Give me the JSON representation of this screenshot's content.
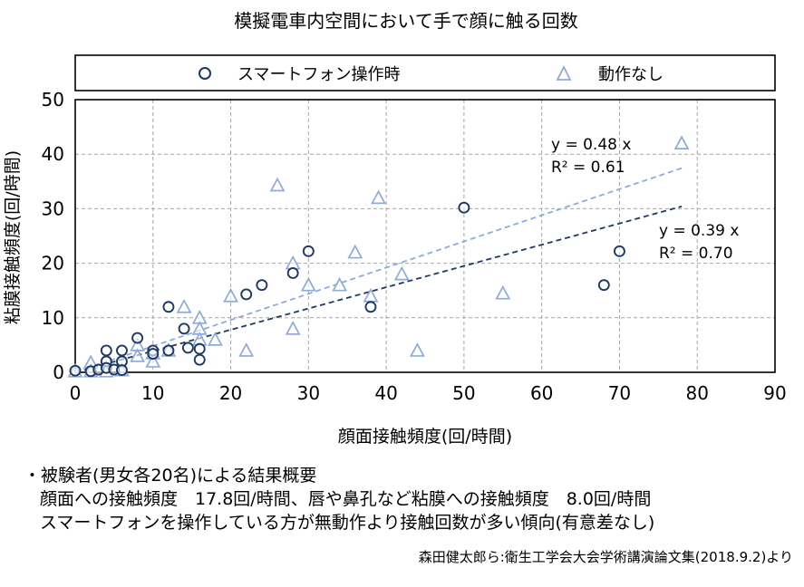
{
  "chart_data": {
    "type": "scatter",
    "title": "模擬電車内空間において手で顔に触る回数",
    "xlabel": "顔面接触頻度(回/時間)",
    "ylabel": "粘膜接触頻度(回/時間)",
    "xlim": [
      0,
      90
    ],
    "ylim": [
      0,
      50
    ],
    "x_ticks": [
      "0",
      "10",
      "20",
      "30",
      "40",
      "50",
      "60",
      "70",
      "80",
      "90"
    ],
    "y_ticks": [
      "0",
      "10",
      "20",
      "30",
      "40",
      "50"
    ],
    "grid": true,
    "legend_position": "top",
    "series": [
      {
        "name": "スマートフォン操作時",
        "marker": "circle",
        "color": "#1f3864",
        "points": [
          [
            0,
            0.3
          ],
          [
            2,
            0.2
          ],
          [
            3,
            0.5
          ],
          [
            4,
            4
          ],
          [
            4,
            2
          ],
          [
            4,
            0.8
          ],
          [
            5,
            0.5
          ],
          [
            6,
            4
          ],
          [
            6,
            2
          ],
          [
            6,
            0.4
          ],
          [
            8,
            6.3
          ],
          [
            10,
            4
          ],
          [
            10,
            3.4
          ],
          [
            12,
            12
          ],
          [
            12,
            4
          ],
          [
            14,
            8
          ],
          [
            14.5,
            4.5
          ],
          [
            16,
            4.3
          ],
          [
            16,
            2.3
          ],
          [
            22,
            14.3
          ],
          [
            24,
            16
          ],
          [
            28,
            18.2
          ],
          [
            30,
            22.2
          ],
          [
            38,
            12
          ],
          [
            50,
            30.2
          ],
          [
            68,
            16
          ],
          [
            70,
            22.2
          ]
        ],
        "trend": {
          "slope": 0.39,
          "color": "#1f3864",
          "x_end": 78,
          "label_eq": "y = 0.39 x",
          "label_r2": "R² = 0.70"
        }
      },
      {
        "name": "動作なし",
        "marker": "triangle",
        "color": "#8faadc",
        "points": [
          [
            0,
            0.2
          ],
          [
            2,
            1.8
          ],
          [
            2,
            0.2
          ],
          [
            4,
            0.2
          ],
          [
            6,
            0.4
          ],
          [
            8,
            5
          ],
          [
            8,
            3
          ],
          [
            10,
            3.5
          ],
          [
            10,
            2
          ],
          [
            12,
            4
          ],
          [
            14,
            12
          ],
          [
            16,
            10
          ],
          [
            16,
            8
          ],
          [
            16,
            6
          ],
          [
            18,
            6
          ],
          [
            20,
            14
          ],
          [
            22,
            4
          ],
          [
            26,
            34.3
          ],
          [
            28,
            20
          ],
          [
            28,
            8
          ],
          [
            30,
            16
          ],
          [
            34,
            16
          ],
          [
            36,
            22
          ],
          [
            38,
            14
          ],
          [
            39,
            32
          ],
          [
            42,
            18
          ],
          [
            44,
            4
          ],
          [
            55,
            14.5
          ],
          [
            78,
            42
          ]
        ],
        "trend": {
          "slope": 0.48,
          "color": "#8faadc",
          "x_end": 78,
          "label_eq": "y = 0.48 x",
          "label_r2": "R² = 0.61"
        }
      }
    ]
  },
  "notes": {
    "line1": "・被験者(男女各20名)による結果概要",
    "line2": "顔面への接触頻度　17.8回/時間、唇や鼻孔など粘膜への接触頻度　8.0回/時間",
    "line3": "スマートフォンを操作している方が無動作より接触回数が多い傾向(有意差なし)"
  },
  "source": "森田健太郎ら:衛生工学会大会学術講演論文集(2018.9.2)より"
}
